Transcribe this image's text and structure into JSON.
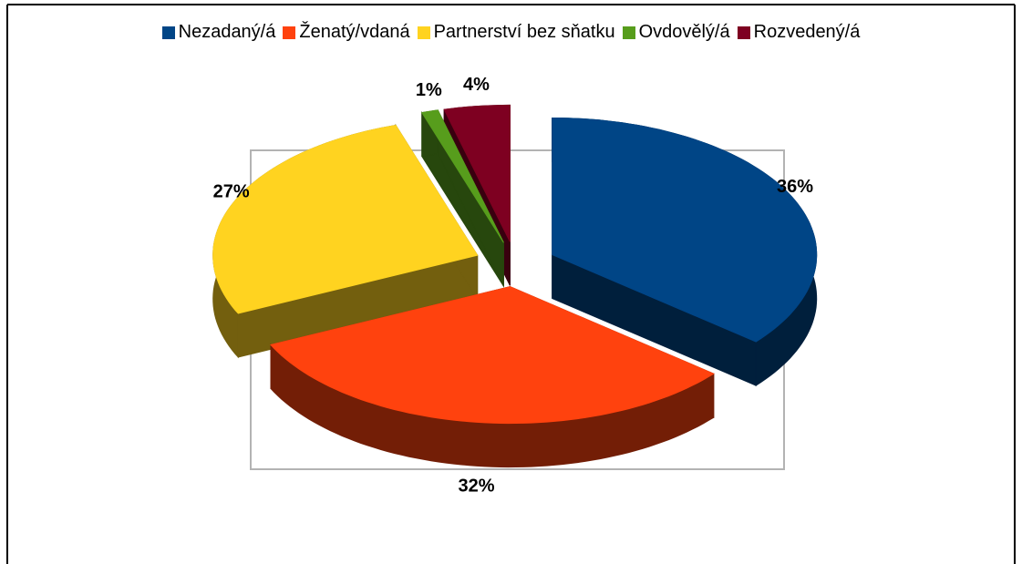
{
  "chart_data": {
    "type": "pie3d",
    "categories": [
      "Nezadaný/á",
      "Ženatý/vdaná",
      "Partnerství bez sňatku",
      "Ovdovělý/á",
      "Rozvedený/á"
    ],
    "values": [
      36,
      32,
      27,
      1,
      4
    ],
    "value_labels": [
      "36%",
      "32%",
      "27%",
      "1%",
      "4%"
    ],
    "colors": [
      "#004586",
      "#ff420e",
      "#ffd320",
      "#579d1c",
      "#7e0021"
    ],
    "legend": "top"
  }
}
